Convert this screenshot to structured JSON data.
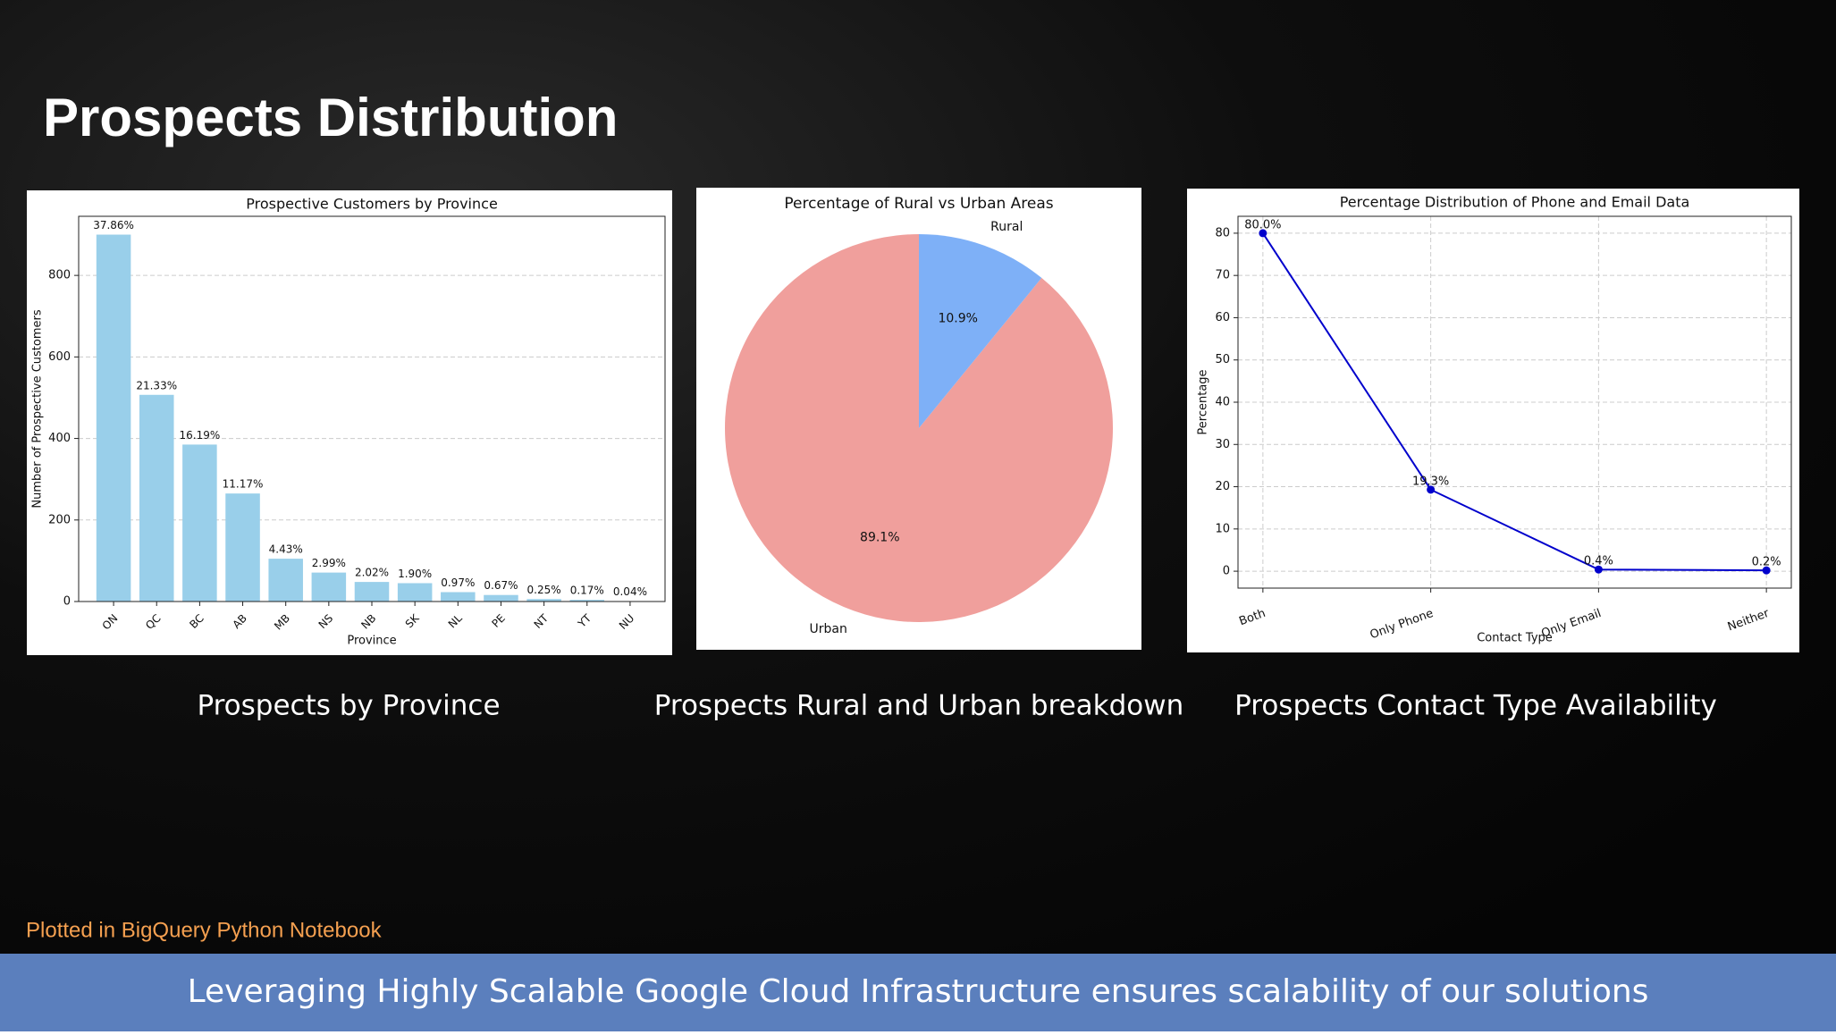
{
  "slide": {
    "title": "Prospects Distribution",
    "captions": [
      "Prospects by Province",
      "Prospects Rural and Urban breakdown",
      "Prospects Contact Type Availability"
    ],
    "note": "Plotted in BigQuery Python Notebook",
    "footer": "Leveraging Highly Scalable Google Cloud Infrastructure ensures scalability of our solutions"
  },
  "chart_data": [
    {
      "type": "bar",
      "title": "Prospective Customers by Province",
      "x_label": "Province",
      "y_label": "Number of Prospective Customers",
      "categories": [
        "ON",
        "QC",
        "BC",
        "AB",
        "MB",
        "NS",
        "NB",
        "SK",
        "NL",
        "PE",
        "NT",
        "YT",
        "NU"
      ],
      "values": [
        900,
        507,
        385,
        265,
        105,
        71,
        48,
        45,
        23,
        16,
        6,
        4,
        1
      ],
      "shares": {
        "values": [
          37.86,
          21.33,
          16.19,
          11.17,
          4.43,
          2.99,
          2.02,
          1.9,
          0.97,
          0.67,
          0.25,
          0.17,
          0.04
        ],
        "value_labels": [
          "37.86%",
          "21.33%",
          "16.19%",
          "11.17%",
          "4.43%",
          "2.99%",
          "2.02%",
          "1.90%",
          "0.97%",
          "0.67%",
          "0.25%",
          "0.17%",
          "0.04%"
        ]
      },
      "color": "#99cfea",
      "ylim": [
        0,
        945
      ],
      "yticks": [
        0,
        200,
        400,
        600,
        800
      ],
      "grid": "y"
    },
    {
      "type": "pie",
      "title": "Percentage of Rural vs Urban Areas",
      "categories": [
        "Urban",
        "Rural"
      ],
      "values": [
        89.1,
        10.9
      ],
      "value_labels": [
        "89.1%",
        "10.9%"
      ],
      "colors": [
        "#f09f9c",
        "#7eb0f7"
      ]
    },
    {
      "type": "line",
      "title": "Percentage Distribution of Phone and Email Data",
      "x_label": "Contact Type",
      "y_label": "Percentage",
      "categories": [
        "Both",
        "Only Phone",
        "Only Email",
        "Neither"
      ],
      "values": [
        80.0,
        19.3,
        0.4,
        0.2
      ],
      "value_labels": [
        "80.0%",
        "19.3%",
        "0.4%",
        "0.2%"
      ],
      "color": "#0000cc",
      "ylim": [
        -4,
        84
      ],
      "yticks": [
        0,
        10,
        20,
        30,
        40,
        50,
        60,
        70,
        80
      ],
      "grid": "both"
    }
  ]
}
